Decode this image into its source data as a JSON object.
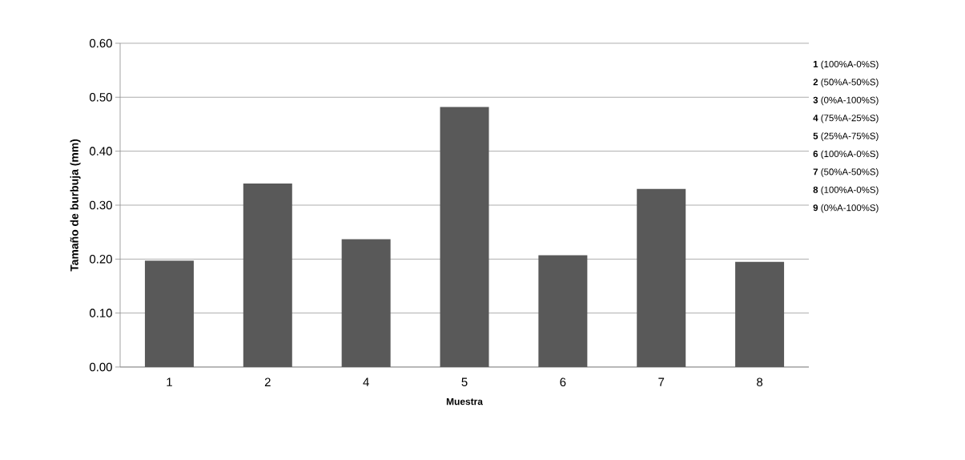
{
  "chart_data": {
    "type": "bar",
    "ylabel": "Tamaño de burbuja (mm)",
    "xlabel": "Muestra",
    "categories": [
      "1",
      "2",
      "4",
      "5",
      "6",
      "7",
      "8"
    ],
    "values": [
      0.197,
      0.34,
      0.237,
      0.482,
      0.207,
      0.33,
      0.195
    ],
    "color": "#595959",
    "ylim": [
      0,
      0.6
    ],
    "yticks": [
      {
        "value": 0,
        "label": "0.00"
      },
      {
        "value": 0.1,
        "label": "0.10"
      },
      {
        "value": 0.2,
        "label": "0.20"
      },
      {
        "value": 0.3,
        "label": "0.30"
      },
      {
        "value": 0.4,
        "label": "0.40"
      },
      {
        "value": 0.5,
        "label": "0.50"
      },
      {
        "value": 0.6,
        "label": "0.60"
      }
    ],
    "grid": "y",
    "annotations": [
      "**1** (100%A-0%S)",
      "**2** (50%A-50%S)",
      "**3** (0%A-100%S)",
      "**4** (75%A-25%S)",
      "**5** (25%A-75%S)",
      "**6** (100%A-0%S)",
      "**7** (50%A-50%S)",
      "**8** (100%A-0%S)",
      "**9** (0%A-100%S)"
    ]
  }
}
